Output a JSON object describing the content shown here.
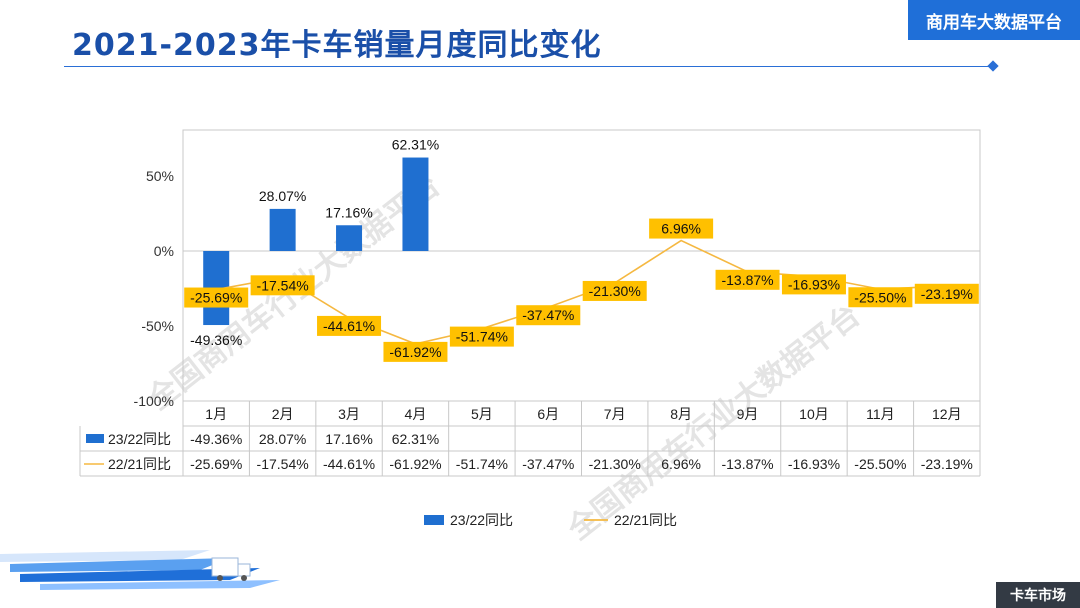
{
  "page": {
    "title": "2021-2023年卡车销量月度同比变化",
    "brand": "商用车大数据平台",
    "footer_badge": "卡车市场",
    "watermark": "全国商用车行业大数据平台"
  },
  "colors": {
    "bar": "#1f6fd0",
    "line": "#f5b841",
    "label_bg": "#ffc000",
    "title": "#1a4fa8"
  },
  "chart_data": {
    "type": "bar",
    "categories": [
      "1月",
      "2月",
      "3月",
      "4月",
      "5月",
      "6月",
      "7月",
      "8月",
      "9月",
      "10月",
      "11月",
      "12月"
    ],
    "y_ticks": [
      "50%",
      "0%",
      "-50%",
      "-100%"
    ],
    "ylim": [
      -100,
      80
    ],
    "y_tick_values": [
      50,
      0,
      -50,
      -100
    ],
    "series": [
      {
        "name": "23/22同比",
        "kind": "bar",
        "values": [
          -49.36,
          28.07,
          17.16,
          62.31,
          null,
          null,
          null,
          null,
          null,
          null,
          null,
          null
        ],
        "labels": [
          "-49.36%",
          "28.07%",
          "17.16%",
          "62.31%",
          "",
          "",
          "",
          "",
          "",
          "",
          "",
          ""
        ]
      },
      {
        "name": "22/21同比",
        "kind": "line",
        "values": [
          -25.69,
          -17.54,
          -44.61,
          -61.92,
          -51.74,
          -37.47,
          -21.3,
          6.96,
          -13.87,
          -16.93,
          -25.5,
          -23.19
        ],
        "labels": [
          "-25.69%",
          "-17.54%",
          "-44.61%",
          "-61.92%",
          "-51.74%",
          "-37.47%",
          "-21.30%",
          "6.96%",
          "-13.87%",
          "-16.93%",
          "-25.50%",
          "-23.19%"
        ]
      }
    ],
    "legend": [
      "23/22同比",
      "22/21同比"
    ],
    "legend_position": "bottom",
    "grid": false,
    "data_table": true
  }
}
